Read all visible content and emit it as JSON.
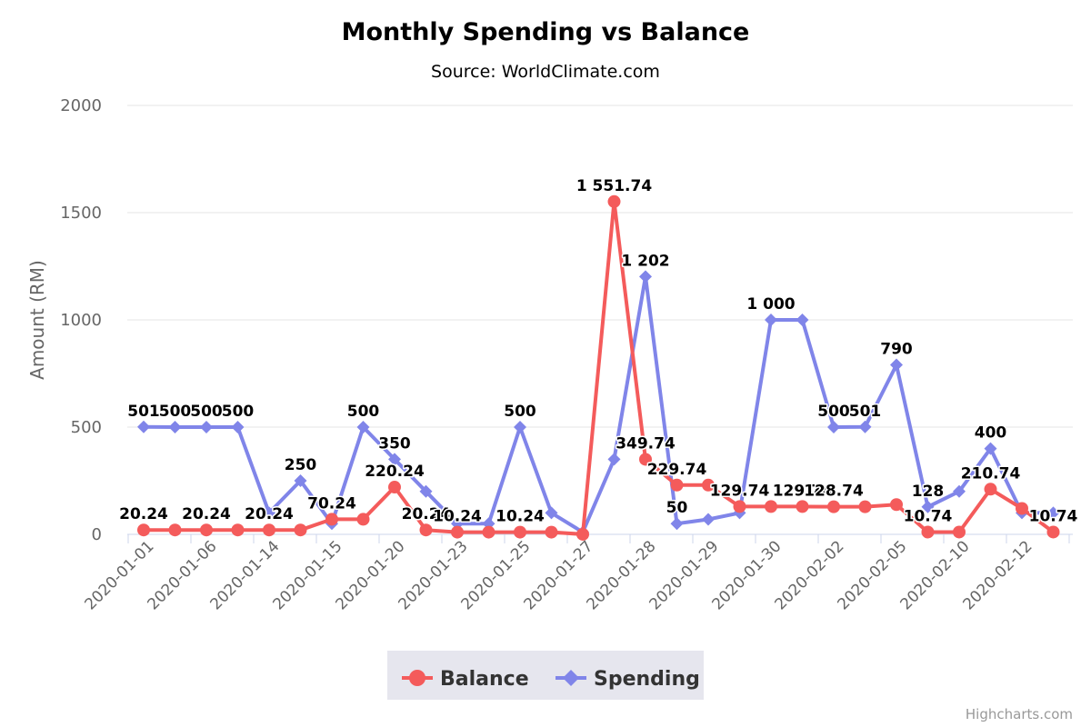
{
  "chart_data": {
    "type": "line",
    "title": "Monthly Spending vs Balance",
    "subtitle": "Source: WorldClimate.com",
    "ylabel": "Amount (RM)",
    "ylim": [
      0,
      2000
    ],
    "yticks": [
      0,
      500,
      1000,
      1500,
      2000
    ],
    "x_tick_labels": [
      "2020-01-01",
      "2020-01-06",
      "2020-01-14",
      "2020-01-15",
      "2020-01-20",
      "2020-01-23",
      "2020-01-25",
      "2020-01-27",
      "2020-01-28",
      "2020-01-29",
      "2020-01-30",
      "2020-02-02",
      "2020-02-05",
      "2020-02-10",
      "2020-02-12"
    ],
    "grid": true,
    "legend_position": "bottom-center",
    "credits": "Highcharts.com",
    "series": [
      {
        "name": "Balance",
        "color": "#f45b5b",
        "marker": "circle",
        "values": [
          20.24,
          20.24,
          20.24,
          20.24,
          20.24,
          20.24,
          70.24,
          70.24,
          220.24,
          20.24,
          10.24,
          10.24,
          10.24,
          10.24,
          0.24,
          1551.74,
          349.74,
          229.74,
          229.74,
          129.74,
          129.74,
          129.74,
          128.74,
          128.74,
          138.74,
          10.74,
          10.74,
          210.74,
          120.74,
          10.74
        ],
        "labels": [
          "20.24",
          "",
          "20.24",
          "",
          "20.24",
          "",
          "70.24",
          "",
          "220.24",
          "20.24",
          "10.24",
          "",
          "10.24",
          "",
          "",
          "1 551.74",
          "349.74",
          "229.74",
          "",
          "129.74",
          "",
          "129.74",
          "128.74",
          "",
          "",
          "10.74",
          "",
          "210.74",
          "",
          "10.74"
        ]
      },
      {
        "name": "Spending",
        "color": "#8085e9",
        "marker": "diamond",
        "values": [
          501,
          500,
          500,
          500,
          100,
          250,
          50,
          500,
          350,
          200,
          50,
          50,
          500,
          100,
          10,
          350,
          1202,
          50,
          70,
          100,
          1000,
          1000,
          500,
          501,
          790,
          128,
          200,
          400,
          100,
          100
        ],
        "labels": [
          "501",
          "500",
          "500",
          "500",
          "",
          "250",
          "",
          "500",
          "350",
          "",
          "",
          "",
          "500",
          "",
          "",
          "",
          "1 202",
          "50",
          "",
          "",
          "1 000",
          "",
          "500",
          "501",
          "790",
          "128",
          "",
          "400",
          "",
          ""
        ]
      }
    ]
  }
}
